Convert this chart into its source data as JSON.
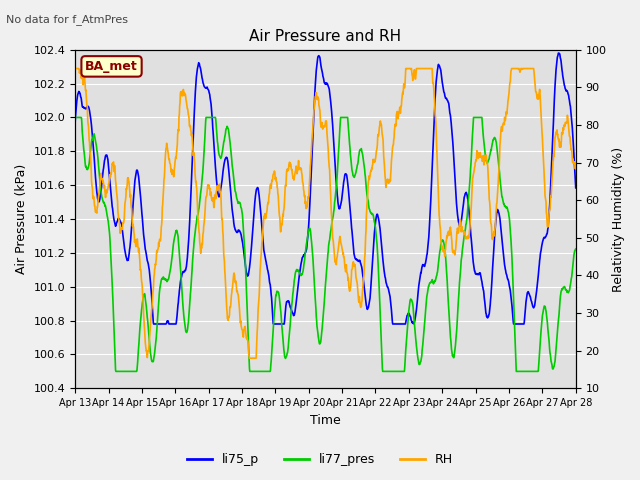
{
  "title": "Air Pressure and RH",
  "top_left_text": "No data for f_AtmPres",
  "station_label": "BA_met",
  "xlabel": "Time",
  "ylabel_left": "Air Pressure (kPa)",
  "ylabel_right": "Relativity Humidity (%)",
  "ylim_left": [
    100.4,
    102.4
  ],
  "ylim_right": [
    10,
    100
  ],
  "yticks_left": [
    100.4,
    100.6,
    100.8,
    101.0,
    101.2,
    101.4,
    101.6,
    101.8,
    102.0,
    102.2,
    102.4
  ],
  "yticks_right": [
    10,
    20,
    30,
    40,
    50,
    60,
    70,
    80,
    90,
    100
  ],
  "xtick_labels": [
    "Apr 13",
    "Apr 14",
    "Apr 15",
    "Apr 16",
    "Apr 17",
    "Apr 18",
    "Apr 19",
    "Apr 20",
    "Apr 21",
    "Apr 22",
    "Apr 23",
    "Apr 24",
    "Apr 25",
    "Apr 26",
    "Apr 27",
    "Apr 28"
  ],
  "color_li75": "#0000ff",
  "color_li77": "#00cc00",
  "color_rh": "#ffa500",
  "legend_labels": [
    "li75_p",
    "li77_pres",
    "RH"
  ],
  "fig_bg_color": "#f0f0f0",
  "plot_bg_color": "#e0e0e0",
  "n_points": 1500
}
